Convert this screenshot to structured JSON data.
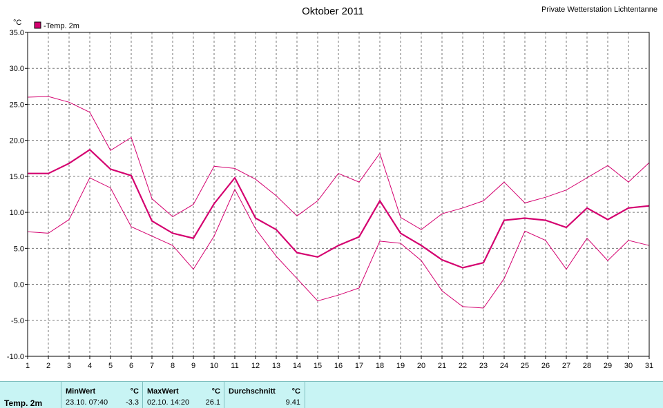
{
  "chart_data": {
    "type": "line",
    "title": "Oktober 2011",
    "station": "Private Wetterstation Lichtentanne",
    "ylabel": "°C",
    "legend": "-Temp. 2m",
    "legend_color": "#d4006f",
    "ylim": [
      -10,
      35
    ],
    "y_ticks": [
      "35.0",
      "30.0",
      "25.0",
      "20.0",
      "15.0",
      "10.0",
      "5.0",
      "0.0",
      "-5.0",
      "-10.0"
    ],
    "x": [
      "1",
      "2",
      "3",
      "4",
      "5",
      "6",
      "7",
      "8",
      "9",
      "10",
      "11",
      "12",
      "13",
      "14",
      "15",
      "16",
      "17",
      "18",
      "19",
      "20",
      "21",
      "22",
      "23",
      "24",
      "25",
      "26",
      "27",
      "28",
      "29",
      "30",
      "31"
    ],
    "grid": true,
    "series": [
      {
        "values": [
          26.0,
          26.1,
          25.3,
          23.9,
          18.6,
          20.4,
          11.9,
          9.4,
          11.1,
          16.4,
          16.1,
          14.6,
          12.3,
          9.5,
          11.6,
          15.4,
          14.2,
          18.2,
          9.3,
          7.6,
          9.8,
          10.6,
          11.6,
          14.2,
          11.3,
          12.1,
          13.1,
          14.8,
          16.5,
          14.2,
          16.9
        ],
        "width": 1
      },
      {
        "values": [
          15.4,
          15.4,
          16.8,
          18.7,
          16.0,
          15.1,
          8.8,
          7.1,
          6.4,
          11.2,
          14.8,
          9.2,
          7.6,
          4.4,
          3.8,
          5.4,
          6.6,
          11.6,
          7.1,
          5.4,
          3.4,
          2.3,
          3.0,
          8.9,
          9.2,
          8.9,
          7.9,
          10.6,
          9.0,
          10.6,
          10.9
        ],
        "width": 2.2
      },
      {
        "values": [
          7.3,
          7.1,
          9.0,
          14.8,
          13.4,
          8.0,
          6.7,
          5.4,
          2.1,
          6.7,
          13.2,
          7.7,
          3.9,
          0.8,
          -2.3,
          -1.5,
          -0.5,
          6.0,
          5.7,
          3.3,
          -0.9,
          -3.1,
          -3.3,
          0.8,
          7.4,
          6.1,
          2.1,
          6.4,
          3.3,
          6.1,
          5.4
        ],
        "width": 1
      }
    ]
  },
  "stats": {
    "row_label": "Temp. 2m",
    "min_header": "MinWert",
    "min_unit": "°C",
    "min_time": "23.10.  07:40",
    "min_value": "-3.3",
    "max_header": "MaxWert",
    "max_unit": "°C",
    "max_time": "02.10.  14:20",
    "max_value": "26.1",
    "avg_header": "Durchschnitt",
    "avg_unit": "°C",
    "avg_value": "9.41"
  }
}
